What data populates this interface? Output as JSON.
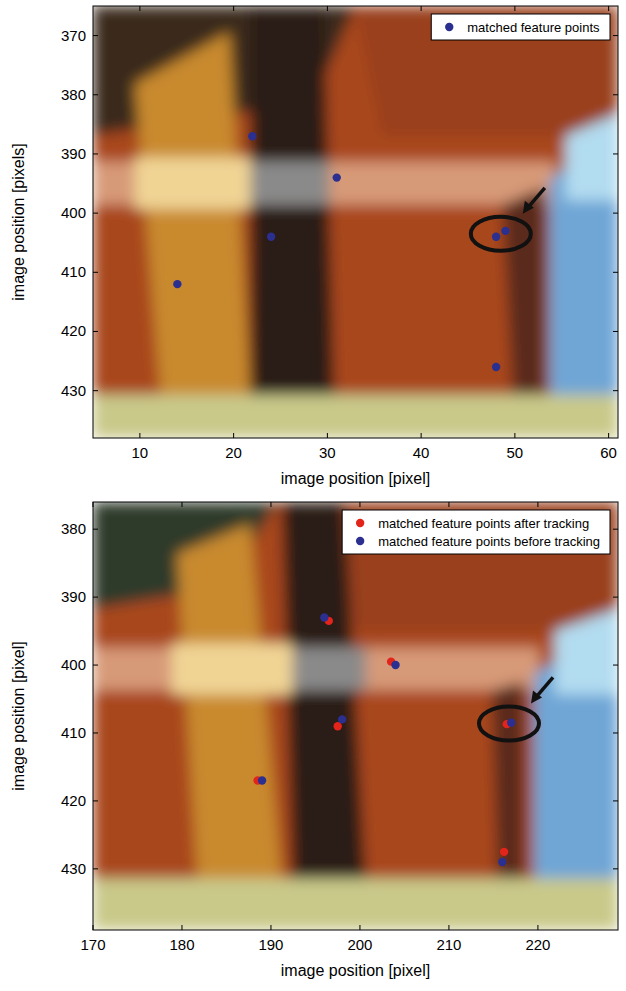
{
  "chart_data": [
    {
      "type": "scatter",
      "x_label": "image position [pixel]",
      "y_label": "image position [pixels]",
      "xlim": [
        5,
        61
      ],
      "ylim": [
        438,
        365
      ],
      "xticks": [
        10,
        20,
        30,
        40,
        50,
        60
      ],
      "yticks": [
        370,
        380,
        390,
        400,
        410,
        420,
        430
      ],
      "grid": false,
      "legend": "upper right",
      "series": [
        {
          "name": "matched feature points",
          "color": "#2b2f8f",
          "marker": "circle",
          "x": [
            22,
            31,
            24,
            14,
            48,
            49,
            48
          ],
          "values": [
            387,
            394,
            404,
            412,
            404,
            403,
            426
          ]
        }
      ]
    },
    {
      "type": "scatter",
      "x_label": "image position [pixel]",
      "y_label": "image position [pixel]",
      "xlim": [
        170,
        229
      ],
      "ylim": [
        439,
        376
      ],
      "xticks": [
        170,
        180,
        190,
        200,
        210,
        220
      ],
      "yticks": [
        380,
        390,
        400,
        410,
        420,
        430
      ],
      "grid": false,
      "legend": "upper right",
      "series": [
        {
          "name": "matched feature points after tracking",
          "color": "#e3241b",
          "marker": "circle",
          "x": [
            196.5,
            203.5,
            197.5,
            188.5,
            216.5,
            216.2
          ],
          "values": [
            393.5,
            399.5,
            409,
            417,
            408.7,
            427.5
          ]
        },
        {
          "name": "matched feature points before tracking",
          "color": "#2b2f8f",
          "marker": "circle",
          "x": [
            196,
            204,
            198,
            189,
            217,
            216
          ],
          "values": [
            393,
            400,
            408,
            417,
            408.5,
            429
          ]
        }
      ]
    }
  ]
}
